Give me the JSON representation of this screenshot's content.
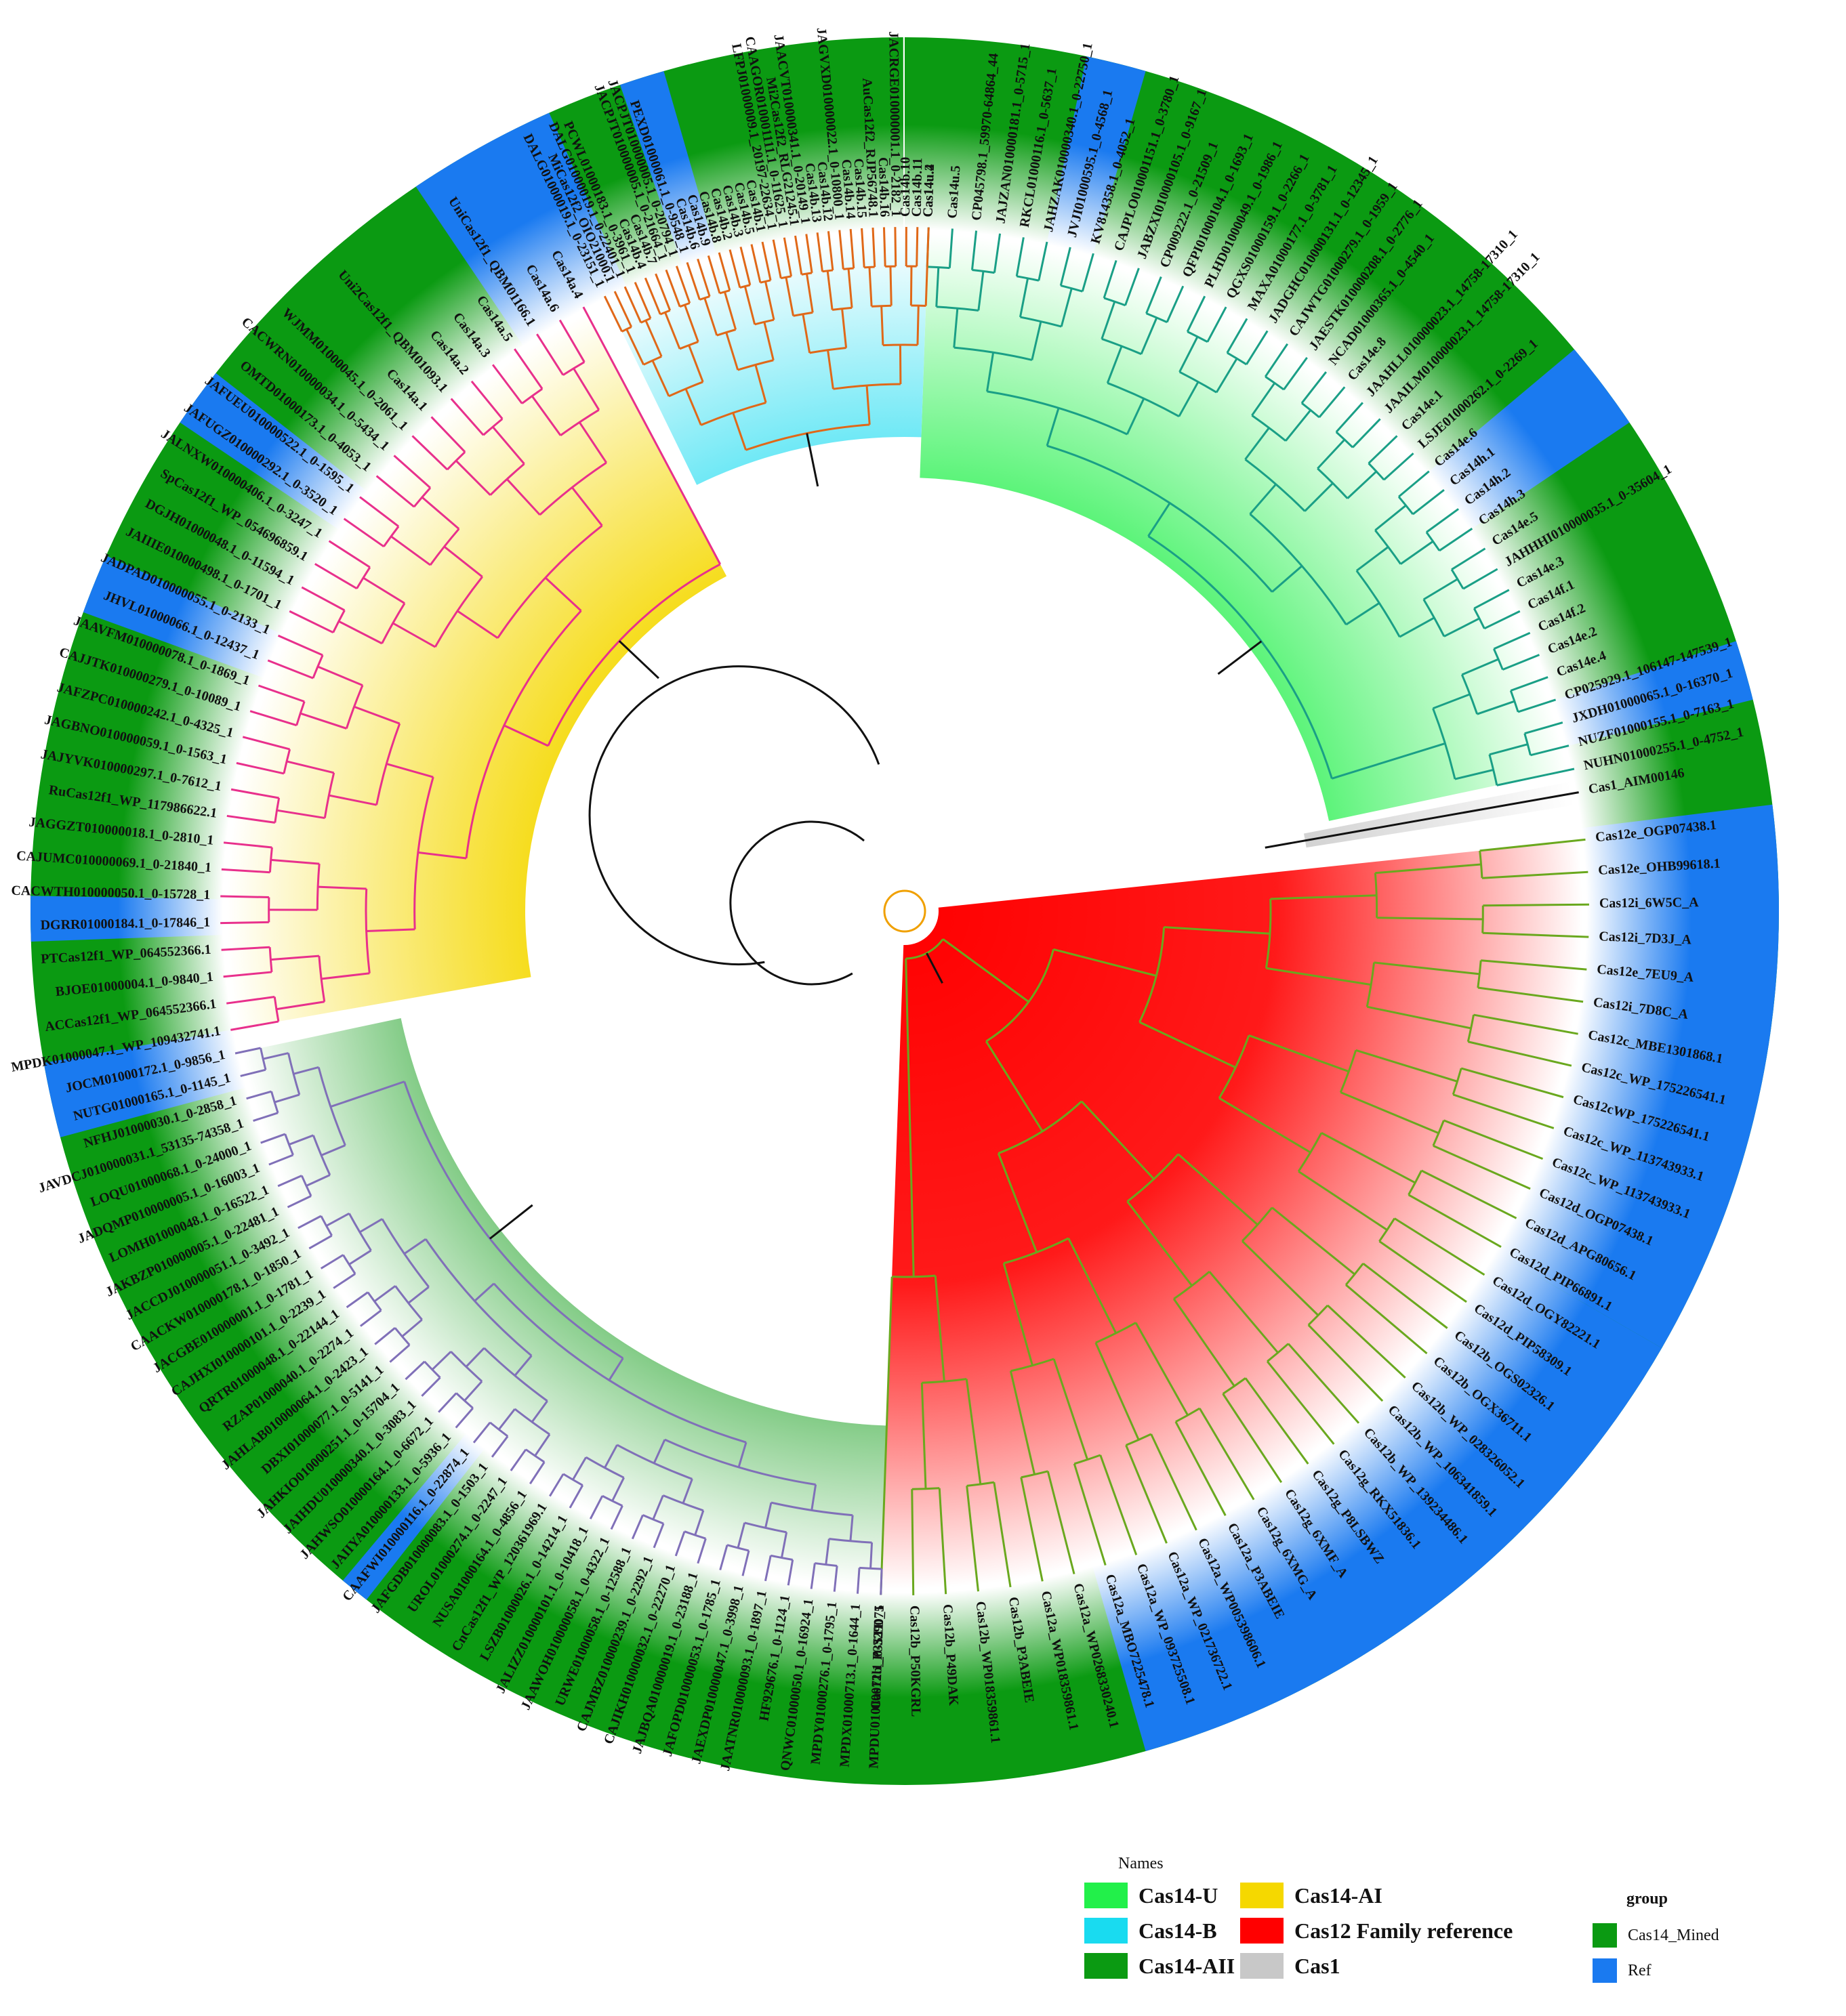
{
  "legend": {
    "title": "Names",
    "items": [
      {
        "label": "Cas14-U",
        "color": "#22f04a"
      },
      {
        "label": "Cas14-AI",
        "color": "#f5d800"
      },
      {
        "label": "Cas14-B",
        "color": "#19dbf0"
      },
      {
        "label": "Cas12 Family reference",
        "color": "#ff0000"
      },
      {
        "label": "Cas14-AII",
        "color": "#0b9a12"
      },
      {
        "label": "Cas1",
        "color": "#c8c8c8"
      }
    ]
  },
  "group_legend": {
    "title": "group",
    "items": [
      {
        "label": "Cas14_Mined",
        "color": "#0b9a12"
      },
      {
        "label": "Ref",
        "color": "#1a7af0"
      }
    ]
  },
  "clades": [
    {
      "name": "Cas14-U",
      "color": "#22f04a",
      "branch_color": "#1a9f86",
      "leaves": [
        "Cas14u.4",
        "Cas14u.5",
        "CP045798.1_59970-64864_44",
        "JAJZAN010000181.1_0-5715_1",
        "RKCL01000116.1_0-5637_1",
        "JAHZAK010000340.1_0-22750_1",
        "JVJI01000595.1_0-4568_1",
        "KV814358.1_0-4052_1",
        "CAJPLO010001151.1_0-3780_1",
        "JABZXI010000105.1_0-9167_1",
        "CP009222.1_0-21509_1",
        "QFPI01000104.1_0-1693_1",
        "PLHD01000049.1_0-1986_1",
        "QGXS01000159.1_0-2266_1",
        "MAXA01000177.1_0-3781_1",
        "JADGHC010000131.1_0-12345_1",
        "CAJWTG01000279.1_0-1959_1",
        "JAESTK010000208.1_0-2776_1",
        "NCAD01000365.1_0-4540_1",
        "Cas14e.8",
        "JAAHLL010000023.1_14758-17310_1",
        "JAAILM010000023.1_14758-17310_1",
        "Cas14e.1",
        "LSJE01000262.1_0-2269_1",
        "Cas14e.6",
        "Cas14h.1",
        "Cas14h.2",
        "Cas14h.3",
        "Cas14e.5",
        "JAHHHI010000035.1_0-35604_1",
        "Cas14e.3",
        "Cas14f.1",
        "Cas14f.2",
        "Cas14e.2",
        "Cas14e.4",
        "CP025929.1_106147-147539_1",
        "JXDH01000065.1_0-16370_1",
        "NUZF01000155.1_0-7163_1",
        "NUHN01000255.1_0-4752_1"
      ]
    },
    {
      "name": "Cas1",
      "color": "#c8c8c8",
      "branch_color": "#f0a000",
      "leaves": [
        "Cas1_AIM00146"
      ]
    },
    {
      "name": "Cas12 Family reference",
      "color": "#ff0000",
      "branch_color": "#6aa81e",
      "leaves": [
        "Cas12e_OGP07438.1",
        "Cas12e_OHB99618.1",
        "Cas12i_6W5C_A",
        "Cas12i_7D3J_A",
        "Cas12e_7EU9_A",
        "Cas12i_7D8C_A",
        "Cas12c_MBE1301868.1",
        "Cas12c_WP_175226541.1",
        "Cas12cWP_175226541.1",
        "Cas12c_WP_113743933.1",
        "Cas12c_WP_113743933.1",
        "Cas12d_OGP07438.1",
        "Cas12d_APG80656.1",
        "Cas12d_PIP66891.1",
        "Cas12d_OGY82221.1",
        "Cas12d_PIP58309.1",
        "Cas12b_OGS02326.1",
        "Cas12b_OGX36711.1",
        "Cas12b_WP_028326052.1",
        "Cas12b_WP_106341859.1",
        "Cas12b_WP_139234486.1",
        "Cas12g_RKX51836.1",
        "Cas12g_P8LSBWZ",
        "Cas12g_6XMF_A",
        "Cas12g_6XMG_A",
        "Cas12a_P3ABEIE",
        "Cas12a_WP005398606.1",
        "Cas12a_WP_021736722.1",
        "Cas12a_WP_093725508.1",
        "Cas12a_MBO7225478.1",
        "Cas12a_WP0268330240.1",
        "Cas12a_WP018359861.1",
        "Cas12b_P3ABEIE",
        "Cas12b_WP018359861.1",
        "Cas12b_P49DAK",
        "Cas12b_P50KGRL",
        "Cas12b_P3STD75"
      ]
    },
    {
      "name": "Cas14-AII",
      "color": "#0b9a12",
      "branch_color": "#8070b8",
      "leaves": [
        "MPDU01000071.1_0-3290_1",
        "MPDX01000713.1_0-1644_1",
        "MPDY01000276.1_0-1795_1",
        "QNWC01000050.1_0-16924_1",
        "HF929676.1_0-1124_1",
        "JAATNR010000093.1_0-1897_1",
        "JAEXDP010000047.1_0-3998_1",
        "JAFOPD010000053.1_0-1785_1",
        "JAJBQA010000019.1_0-23188_1",
        "CAJIKH010000032.1_0-22270_1",
        "CAJMBZ010000239.1_0-2292_1",
        "URWE01000058.1_0-12588_1",
        "JAAWOH010000058.1_0-4322_1",
        "JALIZZ010000101.1_0-10418_1",
        "LSZB01000026.1_0-14214_1",
        "CnCas12f1_WP_120361969.1",
        "NUSA01000164.1_0-4856_1",
        "UROL01000274.1_0-2247_1",
        "JAFGDB010000083.1_0-1503_1",
        "CAAFWI010000116.1_0-22874_1",
        "JAIIYA010000133.1_0-5936_1",
        "JAHWSO010000164.1_0-6672_1",
        "JAIHDU010000340.1_0-3083_1",
        "JAHKIO010000251.1_0-15704_1",
        "DBXI01000077.1_0-5141_1",
        "JAHLAB010000064.1_0-2423_1",
        "RZAP01000040.1_0-2274_1",
        "QRTR01000048.1_0-22144_1",
        "CAJHXI010000101.1_0-2239_1",
        "JACGBE010000001.1_0-1781_1",
        "CAACKW010000178.1_0-1850_1",
        "JACCDJ010000051.1_0-3492_1",
        "JAKBZP010000005.1_0-22481_1",
        "LOMH01000048.1_0-16522_1",
        "JADQMP010000005.1_0-16003_1",
        "LOQU01000068.1_0-24000_1",
        "JAVDCJ010000031.1_53135-74358_1",
        "NFHJ01000030.1_0-2858_1",
        "NUTG01000165.1_0-1145_1",
        "JOCM01000172.1_0-9856_1"
      ]
    },
    {
      "name": "Cas14-AI",
      "color": "#f5d800",
      "branch_color": "#e8308c",
      "leaves": [
        "MPDK01000047.1_WP_109432741.1",
        "ACCas12f1_WP_064552366.1",
        "BJOE01000004.1_0-9840_1",
        "PTCas12f1_WP_064552366.1",
        "DGRR01000184.1_0-17846_1",
        "CACWTH010000050.1_0-15728_1",
        "CAJUMC010000069.1_0-21840_1",
        "JAGGZT010000018.1_0-2810_1",
        "RuCas12f1_WP_117986622.1",
        "JAJYVK010000297.1_0-7612_1",
        "JAGBNO010000059.1_0-1563_1",
        "JAFZPC010000242.1_0-4325_1",
        "CAJJTK010000279.1_0-10089_1",
        "JAAVFM010000078.1_0-1869_1",
        "JHVL01000066.1_0-12437_1",
        "JADPAD010000055.1_0-2133_1",
        "JAIIIE010000498.1_0-1701_1",
        "DGJH01000048.1_0-11594_1",
        "SpCas12f1_WP_054696859.1",
        "JALNXW010000406.1_0-3247_1",
        "JAFUGZ010000292.1_0-3520_1",
        "JAFUEU010000522.1_0-1595_1",
        "OMTD01000173.1_0-4053_1",
        "CACWRN010000034.1_0-5434_1",
        "WJMM01000045.1_0-2061_1",
        "Cas14a.1",
        "Uni2Cas12f1_QBM01093.1",
        "Cas14a.2",
        "Cas14a.3",
        "Cas14a.5",
        "UniCas12f1_QBM01166.1",
        "Cas14a.6",
        "Cas14a.4"
      ]
    },
    {
      "name": "Cas14-B",
      "color": "#19dbf0",
      "branch_color": "#e06818",
      "leaves": [
        "DALG01000019.1_0-23151_1",
        "MiCas12f2_OIO21000.1",
        "DALG01000019.1_0-22401_1",
        "PCWL01000183.1_0-3961_1",
        "Cas14b.4",
        "Cas14b.7",
        "JACPJT010000005.1_0-21664_1",
        "JACPJT010000005.1_0-20794_1",
        "PEXD01000061.1_0-9548_1",
        "Cas14b.6",
        "Cas14b.9",
        "Cas14b.8",
        "Cas14b.2",
        "Cas14b.3",
        "Cas14b.5",
        "Cas14b.1",
        "LFPJ01000009.1_20197-22634_1",
        "CAAGOR010001111.1_0-11625_1",
        "Mi2Cas12f2_RLG21245.1",
        "JAACVT010000341.1_0-20149_1",
        "Cas14b.13",
        "Cas14b.12",
        "JAGVXD010000022.1_0-10800_1",
        "Cas14b.14",
        "Cas14b.15",
        "AuCas12f2_RJP56748.1",
        "Cas14b.16",
        "JACRGE010000001.1_0-2182_1",
        "Cas14b.10",
        "Cas14b.11",
        "Cas14u.2"
      ]
    }
  ]
}
